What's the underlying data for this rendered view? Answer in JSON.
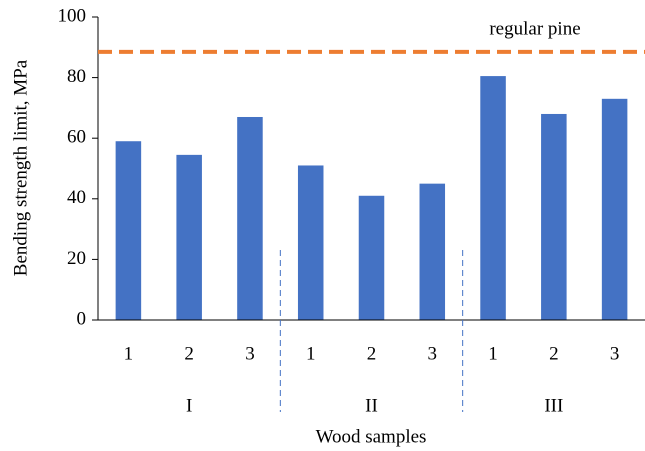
{
  "chart_data": {
    "type": "bar",
    "x_label": "Wood samples",
    "y_label": "Bending strength limit, MPa",
    "categories": [
      "1",
      "2",
      "3",
      "1",
      "2",
      "3",
      "1",
      "2",
      "3"
    ],
    "groups": [
      "I",
      "II",
      "III"
    ],
    "values": [
      59,
      54.5,
      67,
      51,
      41,
      45,
      80.5,
      68,
      73
    ],
    "color": "#4472c4",
    "reference_line": {
      "label": "regular pine",
      "value": 88.5,
      "color": "#ed7d31"
    },
    "ylim": [
      0,
      100
    ],
    "yticks": [
      0,
      20,
      40,
      60,
      80,
      100
    ],
    "grid": false
  }
}
